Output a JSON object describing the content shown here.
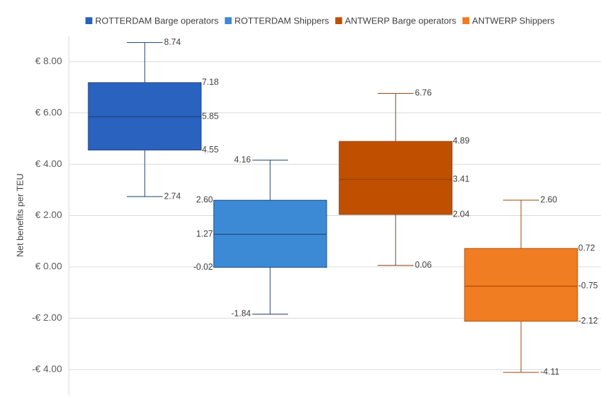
{
  "chart_data": {
    "type": "box",
    "y_label": "Net benefits per TEU",
    "series": [
      {
        "name": "ROTTERDAM Barge operators",
        "color": "#2a62c0",
        "line_color": "#1f3864",
        "values": [
          2.74,
          4.55,
          5.85,
          7.18,
          8.74
        ],
        "value_labels": [
          "2.74",
          "4.55",
          "5.85",
          "7.18",
          "8.74"
        ]
      },
      {
        "name": "ROTTERDAM Shippers",
        "color": "#3c8ad6",
        "line_color": "#1f3864",
        "values": [
          -1.84,
          -0.02,
          1.27,
          2.6,
          4.16
        ],
        "value_labels": [
          "-1.84",
          "-0.02",
          "1.27",
          "2.60",
          "4.16"
        ]
      },
      {
        "name": "ANTWERP Barge operators",
        "color": "#c05000",
        "line_color": "#843c0c",
        "values": [
          0.06,
          2.04,
          3.41,
          4.89,
          6.76
        ],
        "value_labels": [
          "0.06",
          "2.04",
          "3.41",
          "4.89",
          "6.76"
        ]
      },
      {
        "name": "ANTWERP Shippers",
        "color": "#f07d22",
        "line_color": "#a04000",
        "values": [
          -4.11,
          -2.12,
          -0.75,
          0.72,
          2.6
        ],
        "value_labels": [
          "-4.11",
          "-2.12",
          "-0.75",
          "0.72",
          "2.60"
        ]
      }
    ],
    "ylim": [
      -5,
      9
    ],
    "yticks": [
      {
        "value": -4,
        "label": "-€ 4.00"
      },
      {
        "value": -2,
        "label": "-€ 2.00"
      },
      {
        "value": 0,
        "label": "€ 0.00"
      },
      {
        "value": 2,
        "label": "€ 2.00"
      },
      {
        "value": 4,
        "label": "€ 4.00"
      },
      {
        "value": 6,
        "label": "€ 6.00"
      },
      {
        "value": 8,
        "label": "€ 8.00"
      }
    ],
    "grid": true,
    "legend": "top"
  }
}
